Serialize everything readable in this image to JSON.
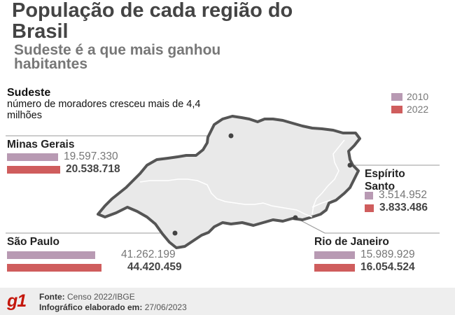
{
  "title": "População de cada região do Brasil",
  "subtitle": "Sudeste é a que mais ganhou habitantes",
  "note": {
    "heading": "Sudeste",
    "text": "número de moradores cresceu mais de 4,4 milhões"
  },
  "legend": [
    {
      "label": "2010",
      "color": "#b89ab3"
    },
    {
      "label": "2022",
      "color": "#cf5d5d"
    }
  ],
  "chart_data": {
    "type": "bar",
    "title": "População de cada região do Brasil",
    "subtitle": "Sudeste é a que mais ganhou habitantes",
    "categories": [
      "Minas Gerais",
      "Espírito Santo",
      "São Paulo",
      "Rio de Janeiro"
    ],
    "series": [
      {
        "name": "2010",
        "color": "#b89ab3",
        "values": [
          19597330,
          3514952,
          41262199,
          15989929
        ]
      },
      {
        "name": "2022",
        "color": "#cf5d5d",
        "values": [
          20538718,
          3833486,
          44420459,
          16054524
        ]
      }
    ],
    "value_labels": {
      "2010": [
        "19.597.330",
        "3.514.952",
        "41.262.199",
        "15.989.929"
      ],
      "2022": [
        "20.538.718",
        "3.833.486",
        "44.420.459",
        "16.054.524"
      ]
    }
  },
  "footer": {
    "logo": "g1",
    "source_label": "Fonte:",
    "source_value": "Censo 2022/IBGE",
    "made_label": "Infográfico elaborado em:",
    "made_value": "27/06/2023"
  }
}
